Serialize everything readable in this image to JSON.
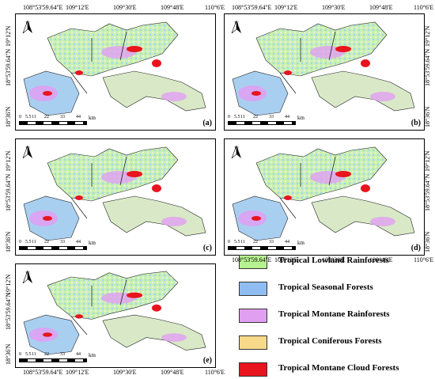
{
  "map": {
    "x_ticks": [
      "108°53'59.64''E",
      "109°12'E",
      "109°30'E",
      "109°48'E",
      "110°6'E"
    ],
    "y_ticks": [
      "19°12'N",
      "18°53'59.64''N",
      "18°36'N"
    ],
    "north_label": "N",
    "scale_ticks": [
      "0",
      "5.5",
      "11",
      "22",
      "33",
      "44"
    ],
    "scale_unit": "km",
    "panels": [
      {
        "label": "(a)"
      },
      {
        "label": "(b)"
      },
      {
        "label": "(c)"
      },
      {
        "label": "(d)"
      },
      {
        "label": "(e)"
      }
    ]
  },
  "legend": {
    "items": [
      {
        "label": "Tropical Lowland Rainforests",
        "color": "#b6f28f"
      },
      {
        "label": "Tropical Seasonal Forests",
        "color": "#8fbdf2"
      },
      {
        "label": "Tropical Montane Rainforests",
        "color": "#e19ff2"
      },
      {
        "label": "Tropical Coniferous Forests",
        "color": "#f7d98a"
      },
      {
        "label": "Tropical Montane Cloud Forests",
        "color": "#e8141e"
      }
    ]
  }
}
